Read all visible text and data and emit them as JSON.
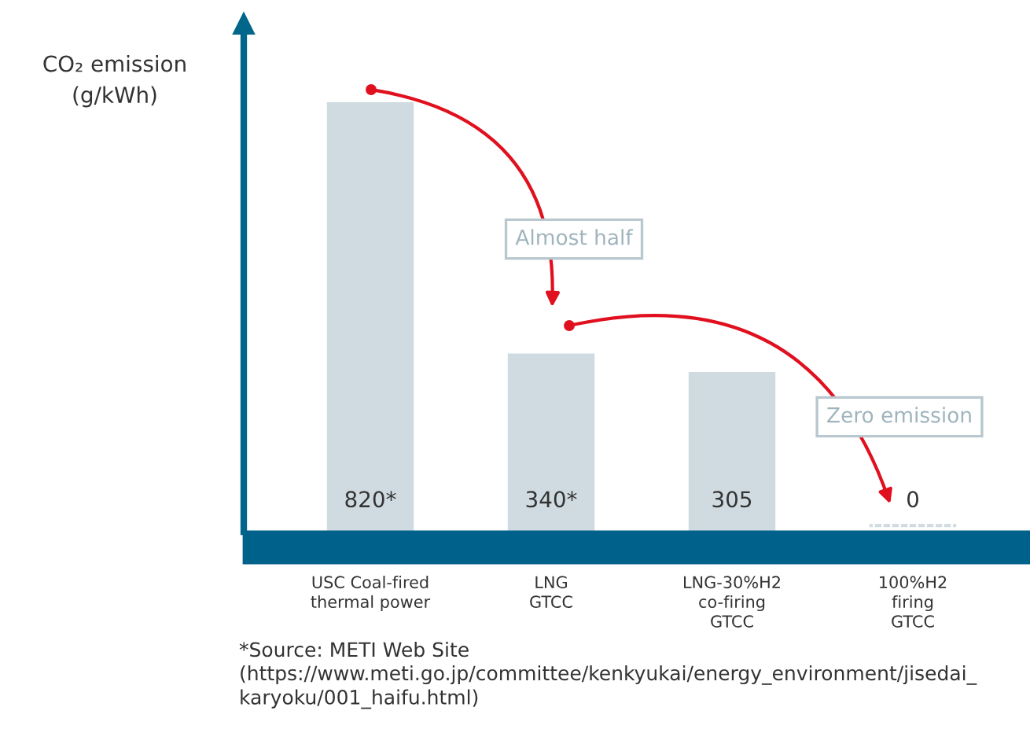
{
  "chart_data": {
    "type": "bar",
    "ylabel": "CO₂ emission\n(g/kWh)",
    "categories": [
      "USC Coal-fired\nthermal power",
      "LNG\nGTCC",
      "LNG-30%H2\nco-firing\nGTCC",
      "100%H2\nfiring\nGTCC"
    ],
    "values": [
      820,
      340,
      305,
      0
    ],
    "value_labels": [
      "820*",
      "340*",
      "305",
      "0"
    ],
    "color": "#cfdbe0",
    "annotations": [
      "Almost half",
      "Zero emission",
      "*Source: METI Web Site\n(https://www.meti.go.jp/committee/kenkyukai/energy_environment/jisedai_\nkaryoku/001_haifu.html)"
    ],
    "legend": false
  }
}
